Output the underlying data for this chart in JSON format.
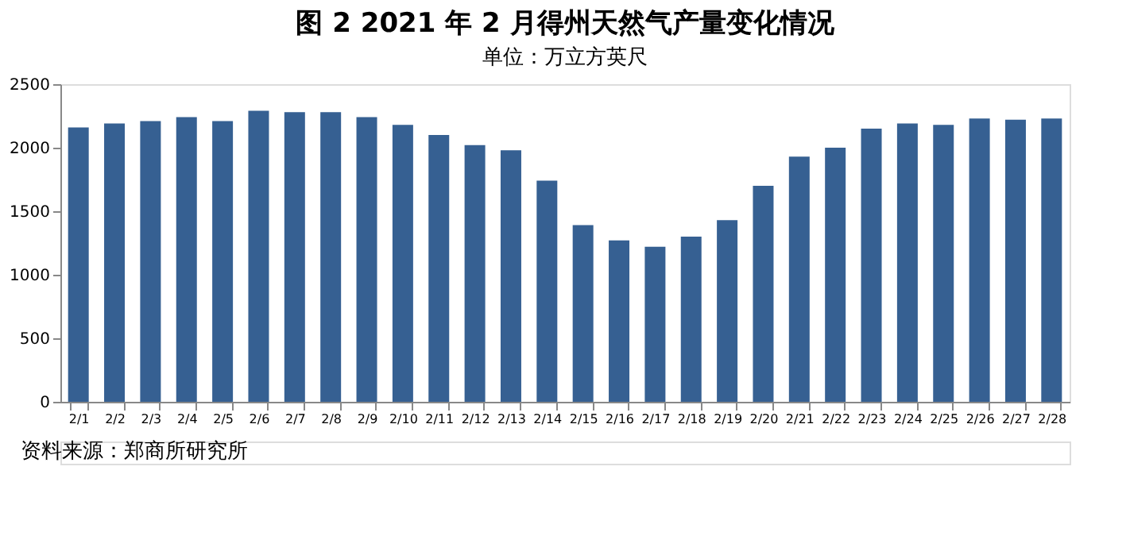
{
  "chart_data": {
    "type": "bar",
    "title": "图 2 2021 年 2 月得州天然气产量变化情况",
    "subtitle": "单位：万立方英尺",
    "categories": [
      "2/1",
      "2/2",
      "2/3",
      "2/4",
      "2/5",
      "2/6",
      "2/7",
      "2/8",
      "2/9",
      "2/10",
      "2/11",
      "2/12",
      "2/13",
      "2/14",
      "2/15",
      "2/16",
      "2/17",
      "2/18",
      "2/19",
      "2/20",
      "2/21",
      "2/22",
      "2/23",
      "2/24",
      "2/25",
      "2/26",
      "2/27",
      "2/28"
    ],
    "values": [
      2160,
      2190,
      2210,
      2240,
      2210,
      2290,
      2280,
      2280,
      2240,
      2180,
      2100,
      2020,
      1980,
      1740,
      1390,
      1270,
      1220,
      1300,
      1430,
      1700,
      1930,
      2000,
      2150,
      2190,
      2180,
      2230,
      2220,
      2230
    ],
    "color": "#366092",
    "ylim": [
      0,
      2500
    ],
    "yticks": [
      0,
      500,
      1000,
      1500,
      2000,
      2500
    ],
    "grid": false,
    "annotations": [
      "资料来源：郑商所研究所"
    ]
  }
}
